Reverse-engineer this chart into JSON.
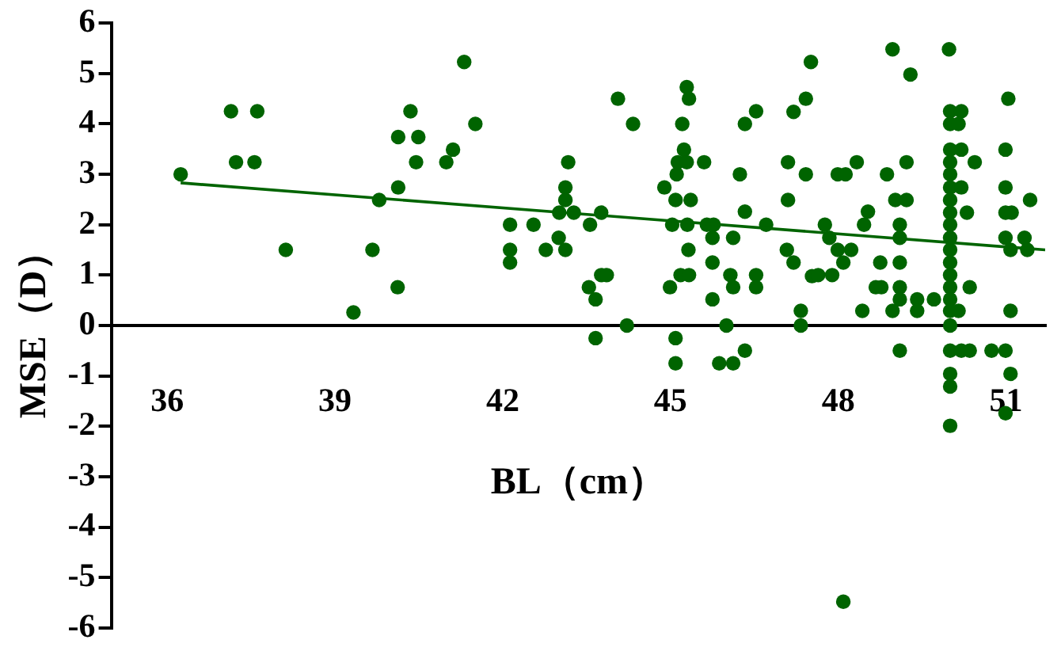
{
  "chart_data": {
    "type": "scatter",
    "xlabel": "BL（cm）",
    "ylabel": "MSE（D）",
    "xlim": [
      35,
      51.7
    ],
    "xticks": [
      36,
      39,
      42,
      45,
      48,
      51
    ],
    "ylim": [
      -6,
      6
    ],
    "yticks": [
      -6,
      -5,
      -4,
      -3,
      -2,
      -1,
      0,
      1,
      2,
      3,
      4,
      5,
      6
    ],
    "grid": false,
    "legend": false,
    "series": [
      {
        "color": "#006400",
        "marker": "circle",
        "x": [
          36.24,
          37.14,
          37.61,
          37.23,
          37.56,
          38.12,
          39.33,
          39.67,
          39.79,
          40.12,
          40.13,
          40.13,
          40.35,
          40.49,
          40.45,
          40.99,
          41.11,
          41.31,
          41.51,
          42.13,
          42.55,
          42.13,
          42.13,
          42.77,
          43.17,
          43.12,
          43.12,
          43.01,
          43.27,
          43.0,
          43.12,
          43.56,
          43.76,
          43.54,
          43.66,
          43.76,
          43.86,
          43.66,
          44.22,
          44.06,
          44.33,
          44.89,
          45.11,
          45.13,
          45.24,
          45.29,
          45.6,
          45.09,
          45.36,
          45.03,
          45.3,
          45.65,
          45.77,
          45.21,
          45.29,
          45.33,
          45.32,
          44.99,
          45.18,
          45.33,
          45.09,
          45.09,
          45.75,
          45.75,
          46.12,
          46.07,
          46.12,
          45.75,
          46.0,
          45.87,
          46.12,
          46.33,
          46.24,
          46.33,
          46.33,
          46.53,
          46.53,
          46.53,
          46.71,
          47.1,
          47.42,
          47.1,
          47.08,
          47.2,
          47.2,
          47.42,
          47.51,
          47.53,
          47.33,
          47.33,
          47.76,
          47.84,
          47.99,
          48.09,
          48.23,
          47.64,
          47.89,
          47.99,
          48.13,
          48.33,
          48.46,
          48.53,
          48.43,
          48.87,
          48.97,
          49.29,
          49.02,
          49.22,
          49.22,
          49.1,
          49.1,
          48.75,
          49.1,
          48.67,
          48.77,
          49.1,
          49.1,
          48.97,
          49.41,
          49.41,
          49.71,
          49.1,
          49.98,
          50.0,
          50.0,
          50.0,
          50.0,
          50.0,
          50.0,
          50.0,
          50.0,
          50.0,
          50.0,
          50.0,
          50.0,
          50.0,
          50.0,
          50.0,
          50.0,
          50.0,
          50.2,
          50.2,
          50.2,
          50.15,
          50.0,
          50.2,
          50.35,
          50.0,
          50.0,
          50.0,
          50.44,
          50.3,
          50.35,
          50.15,
          51.04,
          50.99,
          50.99,
          50.99,
          51.1,
          51.43,
          50.99,
          51.08,
          51.33,
          51.38,
          51.08,
          50.74,
          50.99,
          51.08,
          50.99,
          48.09
        ],
        "values": [
          3.0,
          4.25,
          4.25,
          3.24,
          3.24,
          1.5,
          0.26,
          1.5,
          2.49,
          0.76,
          2.74,
          3.74,
          4.25,
          3.74,
          3.24,
          3.24,
          3.49,
          5.23,
          4.0,
          2.0,
          2.0,
          1.5,
          1.25,
          1.5,
          3.24,
          2.74,
          2.49,
          2.24,
          2.24,
          1.74,
          1.5,
          2.0,
          2.24,
          0.76,
          0.52,
          1.0,
          1.0,
          -0.25,
          0,
          4.5,
          4.0,
          2.74,
          3.0,
          3.24,
          3.49,
          3.24,
          3.24,
          2.49,
          2.49,
          2.0,
          2.0,
          2.0,
          2.0,
          4.0,
          4.73,
          4.5,
          1.5,
          0.76,
          1.0,
          1.0,
          -0.25,
          -0.75,
          1.25,
          1.74,
          1.74,
          1.0,
          0.76,
          0.52,
          0,
          -0.75,
          -0.75,
          -0.5,
          3.0,
          2.26,
          4.0,
          4.25,
          1.0,
          0.76,
          2.0,
          3.24,
          3.0,
          2.49,
          1.5,
          1.25,
          4.24,
          4.5,
          5.23,
          0.98,
          0.29,
          0,
          2.0,
          1.74,
          1.5,
          1.25,
          1.5,
          1.0,
          1.0,
          3.0,
          3.0,
          3.24,
          2.0,
          2.26,
          0.29,
          3.0,
          5.48,
          4.98,
          2.49,
          2.49,
          3.24,
          2.0,
          1.74,
          1.25,
          1.25,
          0.76,
          0.76,
          0.76,
          0.52,
          0.29,
          0.52,
          0.29,
          0.52,
          -0.5,
          5.48,
          4.25,
          4.0,
          3.49,
          3.24,
          3.0,
          2.74,
          2.49,
          2.24,
          2.0,
          1.74,
          1.5,
          1.25,
          1.0,
          0.76,
          0.52,
          0.29,
          0,
          4.25,
          3.49,
          2.74,
          4.0,
          -0.5,
          -0.5,
          -0.5,
          -0.96,
          -1.21,
          -1.99,
          3.24,
          2.24,
          0.76,
          0.29,
          4.5,
          3.49,
          2.74,
          2.24,
          2.24,
          2.49,
          1.74,
          1.5,
          1.74,
          1.5,
          0.29,
          -0.5,
          -0.5,
          -0.96,
          -1.74,
          -5.48
        ]
      },
      {
        "type": "line",
        "color": "#006400",
        "x": [
          36.24,
          51.7
        ],
        "values": [
          2.83,
          1.5
        ]
      }
    ]
  }
}
